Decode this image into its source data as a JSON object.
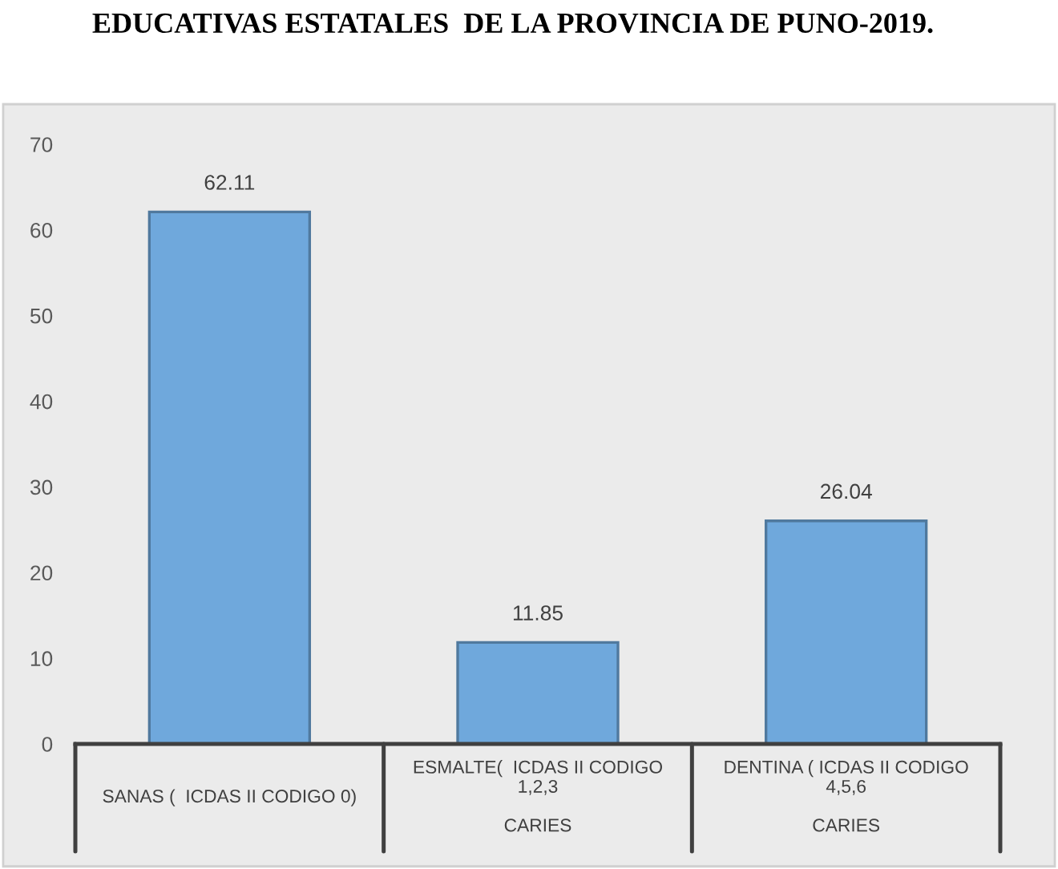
{
  "chart_data": {
    "type": "bar",
    "title": "EDUCATIVAS ESTATALES  DE LA PROVINCIA DE PUNO-2019.",
    "categories": [
      "SANAS (  ICDAS II CODIGO 0)",
      "ESMALTE(  ICDAS II CODIGO\n1,2,3\nCARIES",
      "DENTINA ( ICDAS II CODIGO\n4,5,6\nCARIES"
    ],
    "values": [
      62.11,
      11.85,
      26.04
    ],
    "color": "#6fa8dc",
    "ylim": [
      0,
      70
    ],
    "yticks": [
      0,
      10,
      20,
      30,
      40,
      50,
      60,
      70
    ],
    "grid": false,
    "data_labels": true
  }
}
